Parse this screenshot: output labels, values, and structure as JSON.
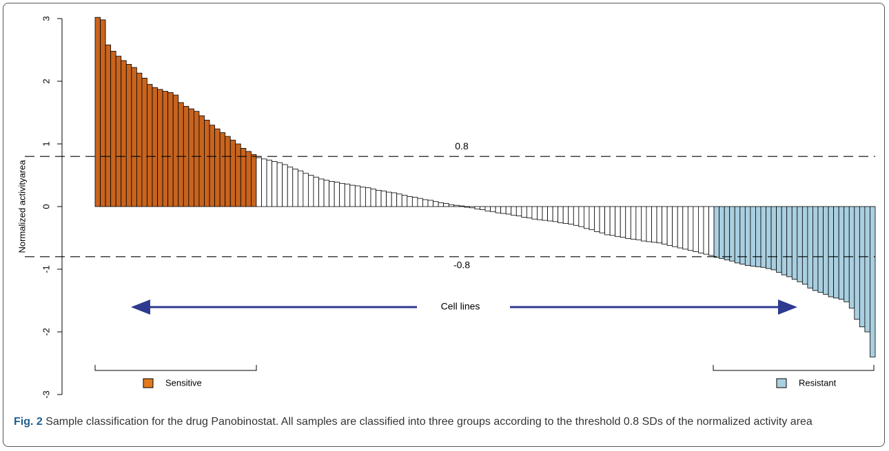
{
  "chart_data": {
    "type": "bar",
    "y_label": "Normalized activityarea",
    "ylim": [
      -3,
      3
    ],
    "yticks": [
      -3,
      -2,
      -1,
      0,
      1,
      2,
      3
    ],
    "threshold": 0.8,
    "colors": {
      "sensitive": "#c8641e",
      "middle": "#ffffff",
      "resistant": "#a9cfe0"
    },
    "hlines": [
      0.8,
      -0.8
    ],
    "arrow_label": "Cell lines",
    "legend": [
      {
        "name": "Sensitive",
        "color": "#e07a20"
      },
      {
        "name": "Resistant",
        "color": "#a9cfe0"
      }
    ],
    "values": [
      3.02,
      2.98,
      2.58,
      2.48,
      2.4,
      2.33,
      2.27,
      2.22,
      2.13,
      2.05,
      1.95,
      1.9,
      1.87,
      1.84,
      1.82,
      1.78,
      1.66,
      1.6,
      1.56,
      1.52,
      1.45,
      1.38,
      1.3,
      1.24,
      1.18,
      1.12,
      1.06,
      1.0,
      0.93,
      0.88,
      0.83,
      0.78,
      0.76,
      0.74,
      0.72,
      0.7,
      0.67,
      0.63,
      0.6,
      0.57,
      0.53,
      0.5,
      0.47,
      0.44,
      0.42,
      0.4,
      0.39,
      0.37,
      0.36,
      0.34,
      0.33,
      0.31,
      0.3,
      0.28,
      0.26,
      0.25,
      0.23,
      0.22,
      0.2,
      0.18,
      0.16,
      0.15,
      0.13,
      0.11,
      0.1,
      0.08,
      0.06,
      0.05,
      0.03,
      0.02,
      0.01,
      -0.01,
      -0.02,
      -0.04,
      -0.05,
      -0.07,
      -0.08,
      -0.1,
      -0.11,
      -0.12,
      -0.14,
      -0.15,
      -0.17,
      -0.18,
      -0.2,
      -0.21,
      -0.22,
      -0.23,
      -0.24,
      -0.26,
      -0.27,
      -0.28,
      -0.3,
      -0.32,
      -0.35,
      -0.37,
      -0.4,
      -0.42,
      -0.45,
      -0.46,
      -0.48,
      -0.49,
      -0.51,
      -0.52,
      -0.53,
      -0.55,
      -0.56,
      -0.57,
      -0.58,
      -0.6,
      -0.62,
      -0.64,
      -0.66,
      -0.68,
      -0.7,
      -0.72,
      -0.74,
      -0.76,
      -0.78,
      -0.81,
      -0.83,
      -0.85,
      -0.87,
      -0.9,
      -0.92,
      -0.94,
      -0.95,
      -0.96,
      -0.97,
      -0.99,
      -1.01,
      -1.05,
      -1.09,
      -1.12,
      -1.16,
      -1.2,
      -1.24,
      -1.3,
      -1.34,
      -1.37,
      -1.4,
      -1.44,
      -1.46,
      -1.48,
      -1.52,
      -1.62,
      -1.8,
      -1.92,
      -2.0,
      -2.4
    ]
  },
  "caption": {
    "label": "Fig. 2",
    "text": "Sample classification for the drug Panobinostat. All samples are classified into three groups according to the threshold 0.8 SDs of the normalized activity area"
  }
}
